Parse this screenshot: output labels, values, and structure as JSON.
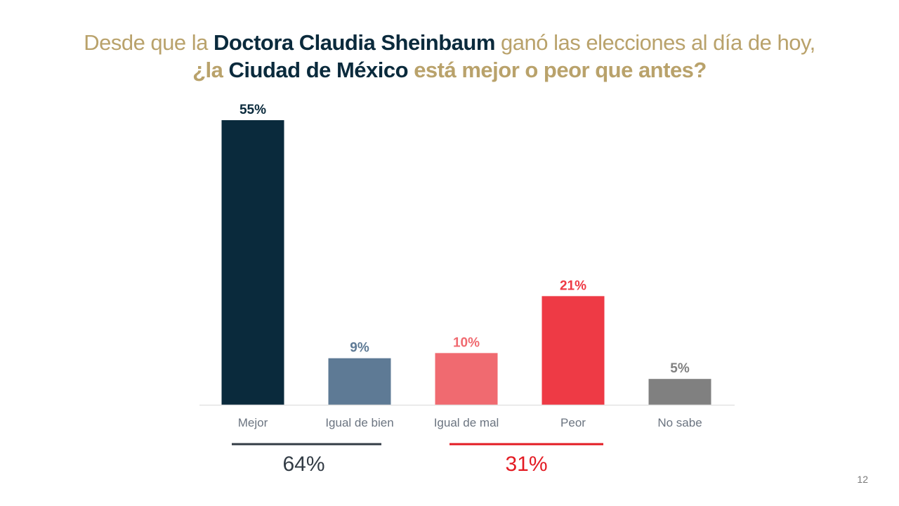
{
  "title": {
    "line1": {
      "prefix": "Desde que la ",
      "name": "Doctora Claudia Sheinbaum",
      "suffix": " ganó las elecciones al día de hoy,"
    },
    "line2": {
      "prefix": "¿la ",
      "place": "Ciudad de México",
      "suffix": " está mejor o peor que antes?"
    }
  },
  "chart_data": {
    "type": "bar",
    "title": "Desde que la Doctora Claudia Sheinbaum ganó las elecciones al día de hoy, ¿la Ciudad de México está mejor o peor que antes?",
    "categories": [
      "Mejor",
      "Igual de bien",
      "Igual de mal",
      "Peor",
      "No sabe"
    ],
    "values": [
      55,
      9,
      10,
      21,
      5
    ],
    "value_labels": [
      "55%",
      "9%",
      "10%",
      "21%",
      "5%"
    ],
    "colors": [
      "#0a2a3c",
      "#5e7a95",
      "#f06a70",
      "#ee3a45",
      "#808080"
    ],
    "xlabel": "",
    "ylabel": "",
    "ylim": [
      0,
      55
    ],
    "grid": false,
    "groups": [
      {
        "label": "64%",
        "categories": [
          "Mejor",
          "Igual de bien"
        ],
        "color": "#333c45"
      },
      {
        "label": "31%",
        "categories": [
          "Igual de mal",
          "Peor"
        ],
        "color": "#e31b23"
      }
    ]
  },
  "footer": {
    "page_number": "12"
  }
}
